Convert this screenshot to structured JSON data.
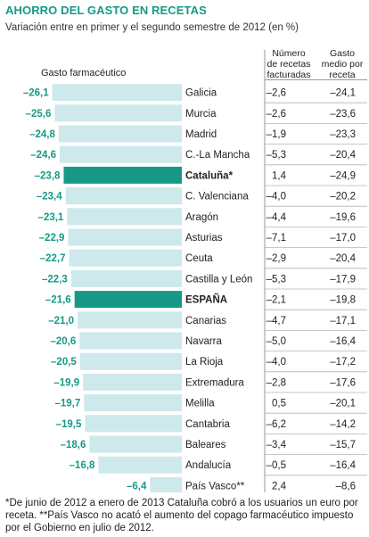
{
  "title": "AHORRO DEL GASTO EN RECETAS",
  "subtitle": "Variación entre en primer y el segundo semestre de 2012 (en %)",
  "bar_header": "Gasto farmacéutico",
  "col_headers": [
    "Número de recetas facturadas",
    "Gasto medio por receta"
  ],
  "col_header_lines": [
    [
      "Número",
      "de recetas",
      "facturadas"
    ],
    [
      "Gasto",
      "medio por",
      "receta"
    ]
  ],
  "colors": {
    "bar": "#cde9ec",
    "highlight": "#169a86",
    "value_text": "#169a86",
    "title": "#169a86"
  },
  "chart_data": {
    "type": "table",
    "categories": [
      "Galicia",
      "Murcia",
      "Madrid",
      "C.-La Mancha",
      "Cataluña*",
      "C. Valenciana",
      "Aragón",
      "Asturias",
      "Ceuta",
      "Castilla y León",
      "ESPAÑA",
      "Canarias",
      "Navarra",
      "La Rioja",
      "Extremadura",
      "Melilla",
      "Cantabria",
      "Baleares",
      "Andalucía",
      "País Vasco**"
    ],
    "highlight": [
      "Cataluña*",
      "ESPAÑA"
    ],
    "series": [
      {
        "name": "Gasto farmacéutico",
        "values": [
          -26.1,
          -25.6,
          -24.8,
          -24.6,
          -23.8,
          -23.4,
          -23.1,
          -22.9,
          -22.7,
          -22.3,
          -21.6,
          -21.0,
          -20.6,
          -20.5,
          -19.9,
          -19.7,
          -19.5,
          -18.6,
          -16.8,
          -6.4
        ]
      },
      {
        "name": "Número de recetas facturadas",
        "values": [
          -2.6,
          -2.6,
          -1.9,
          -5.3,
          1.4,
          -4.0,
          -4.4,
          -7.1,
          -2.9,
          -5.3,
          -2.1,
          -4.7,
          -5.0,
          -4.0,
          -2.8,
          0.5,
          -6.2,
          -3.4,
          -0.5,
          2.4
        ]
      },
      {
        "name": "Gasto medio por receta",
        "values": [
          -24.1,
          -23.6,
          -23.3,
          -20.4,
          -24.9,
          -20.2,
          -19.6,
          -17.0,
          -20.4,
          -17.9,
          -19.8,
          -17.1,
          -16.4,
          -17.2,
          -17.6,
          -20.1,
          -14.2,
          -15.7,
          -16.4,
          -8.6
        ]
      }
    ],
    "labels": {
      "bar": [
        "–26,1",
        "–25,6",
        "–24,8",
        "–24,6",
        "–23,8",
        "–23,4",
        "–23,1",
        "–22,9",
        "–22,7",
        "–22,3",
        "–21,6",
        "–21,0",
        "–20,6",
        "–20,5",
        "–19,9",
        "–19,7",
        "–19,5",
        "–18,6",
        "–16,8",
        "–6,4"
      ],
      "recetas": [
        "–2,6",
        "–2,6",
        "–1,9",
        "–5,3",
        "1,4",
        "–4,0",
        "–4,4",
        "–7,1",
        "–2,9",
        "–5,3",
        "–2,1",
        "–4,7",
        "–5,0",
        "–4,0",
        "–2,8",
        "0,5",
        "–6,2",
        "–3,4",
        "–0,5",
        "2,4"
      ],
      "gasto_medio": [
        "–24,1",
        "–23,6",
        "–23,3",
        "–20,4",
        "–24,9",
        "–20,2",
        "–19,6",
        "–17,0",
        "–20,4",
        "–17,9",
        "–19,8",
        "–17,1",
        "–16,4",
        "–17,2",
        "–17,6",
        "–20,1",
        "–14,2",
        "–15,7",
        "–16,4",
        "–8,6"
      ]
    }
  },
  "footnote": "*De junio de 2012 a enero de 2013 Cataluña cobró a los usuarios un euro por receta. **País Vasco no acató el aumento del copago farmacéutico impuesto por el Gobierno en julio de 2012."
}
